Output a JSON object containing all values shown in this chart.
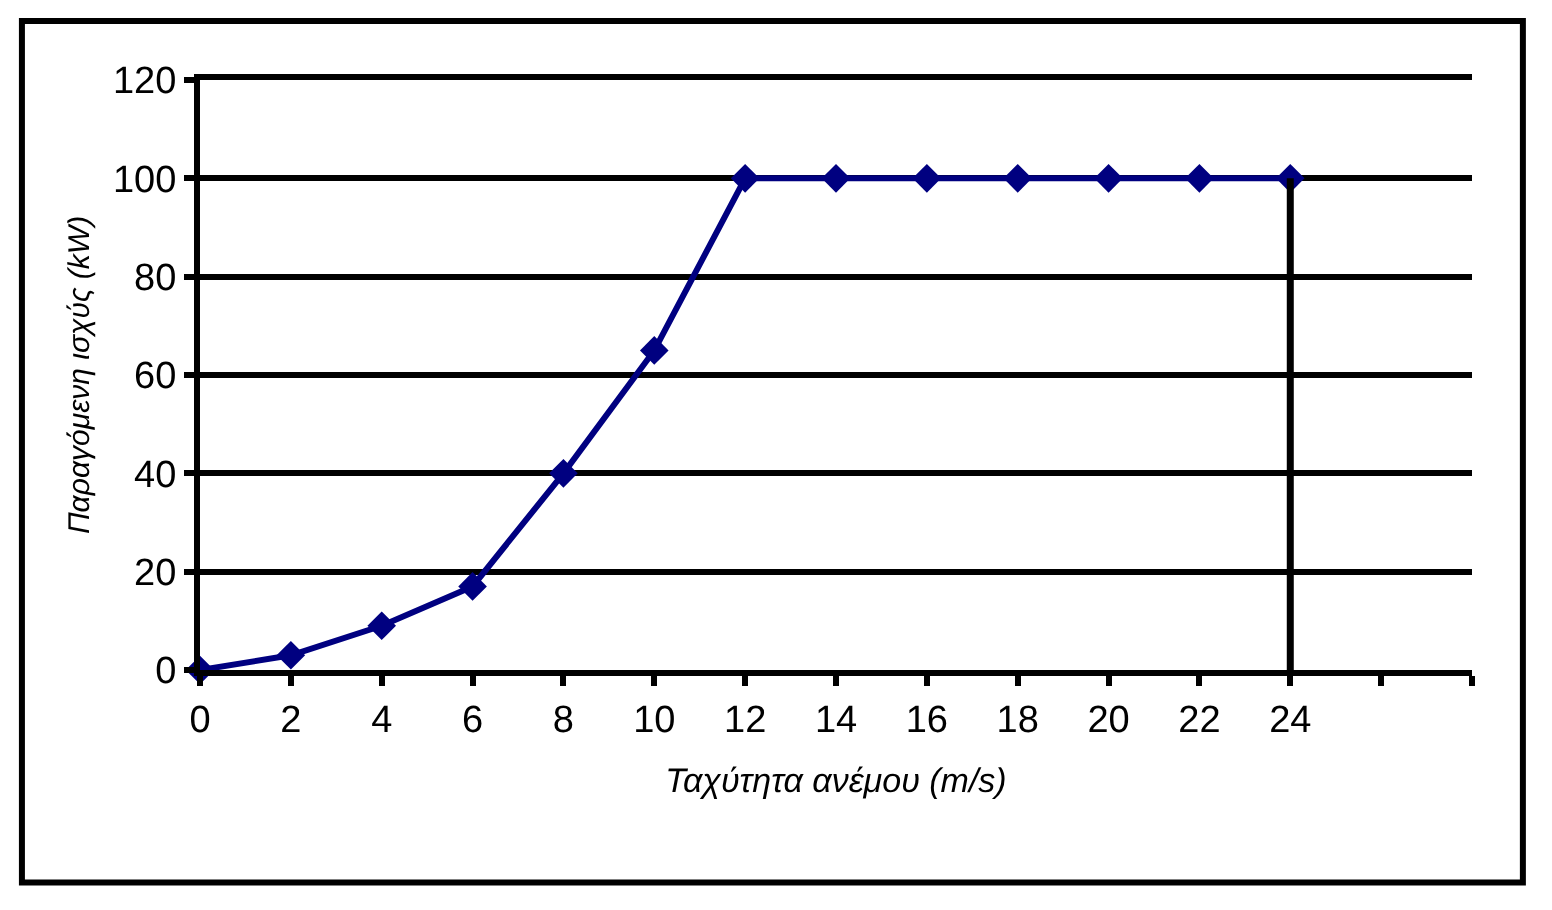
{
  "chart_data": {
    "type": "line",
    "xlabel": "Ταχύτητα ανέμου (m/s)",
    "ylabel": "Παραγόμενη ισχύς (kW)",
    "xlim": [
      0,
      28
    ],
    "xticks": [
      0,
      2,
      4,
      6,
      8,
      10,
      12,
      14,
      16,
      18,
      20,
      22,
      24,
      {
        "value": 26,
        "label": null
      },
      {
        "value": 28,
        "label": null
      }
    ],
    "ylim": [
      0,
      120
    ],
    "yticks": [
      0,
      20,
      40,
      60,
      80,
      100,
      120
    ],
    "grid": "y",
    "marker": "diamond",
    "line_style": "solid",
    "series": [
      {
        "color": "#000080",
        "x": [
          0,
          2,
          4,
          6,
          8,
          10,
          12,
          14,
          16,
          18,
          20,
          22,
          24
        ],
        "values": [
          0,
          3,
          9,
          17,
          40,
          65,
          100,
          100,
          100,
          100,
          100,
          100,
          100
        ]
      },
      {
        "type": "line",
        "color": "#000000",
        "marker": "none",
        "x": [
          24,
          24
        ],
        "values": [
          0,
          100
        ]
      }
    ]
  }
}
